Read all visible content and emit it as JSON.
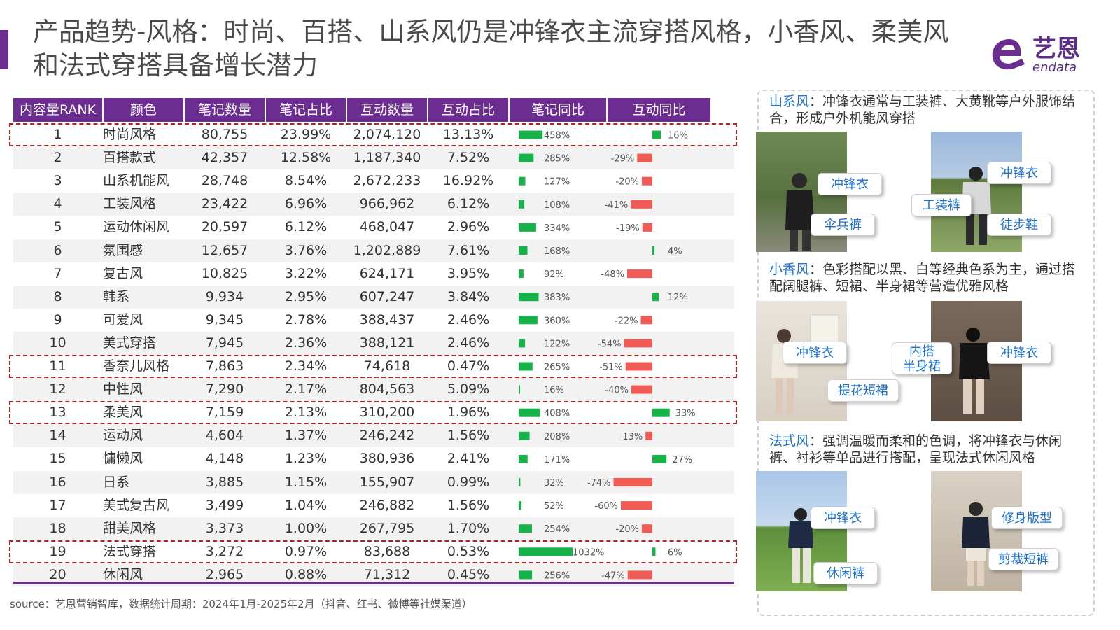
{
  "title": "产品趋势-风格：时尚、百搭、山系风仍是冲锋衣主流穿搭风格，小香风、柔美风和法式穿搭具备增长潜力",
  "logo": {
    "cn": "艺恩",
    "en": "endata"
  },
  "colors": {
    "accent": "#6b2d8f",
    "bar_positive": "#18b24a",
    "bar_negative": "#f05b55",
    "highlight": "#b22222",
    "keyword": "#1e6fcf"
  },
  "table": {
    "headers": [
      "内容量RANK",
      "颜色",
      "笔记数量",
      "笔记占比",
      "互动数量",
      "互动占比",
      "笔记同比",
      "互动同比"
    ],
    "rows": [
      {
        "rank": "1",
        "name": "时尚风格",
        "notes": "80,755",
        "notes_pct": "23.99%",
        "inter": "2,074,120",
        "inter_pct": "13.13%",
        "note_yoy": "458%",
        "inter_yoy": "16%"
      },
      {
        "rank": "2",
        "name": "百搭款式",
        "notes": "42,357",
        "notes_pct": "12.58%",
        "inter": "1,187,340",
        "inter_pct": "7.52%",
        "note_yoy": "285%",
        "inter_yoy": "-29%"
      },
      {
        "rank": "3",
        "name": "山系机能风",
        "notes": "28,748",
        "notes_pct": "8.54%",
        "inter": "2,672,233",
        "inter_pct": "16.92%",
        "note_yoy": "127%",
        "inter_yoy": "-20%"
      },
      {
        "rank": "4",
        "name": "工装风格",
        "notes": "23,422",
        "notes_pct": "6.96%",
        "inter": "966,962",
        "inter_pct": "6.12%",
        "note_yoy": "108%",
        "inter_yoy": "-41%"
      },
      {
        "rank": "5",
        "name": "运动休闲风",
        "notes": "20,597",
        "notes_pct": "6.12%",
        "inter": "468,047",
        "inter_pct": "2.96%",
        "note_yoy": "334%",
        "inter_yoy": "-19%"
      },
      {
        "rank": "6",
        "name": "氛围感",
        "notes": "12,657",
        "notes_pct": "3.76%",
        "inter": "1,202,889",
        "inter_pct": "7.61%",
        "note_yoy": "168%",
        "inter_yoy": "4%"
      },
      {
        "rank": "7",
        "name": "复古风",
        "notes": "10,825",
        "notes_pct": "3.22%",
        "inter": "624,171",
        "inter_pct": "3.95%",
        "note_yoy": "92%",
        "inter_yoy": "-48%"
      },
      {
        "rank": "8",
        "name": "韩系",
        "notes": "9,934",
        "notes_pct": "2.95%",
        "inter": "607,247",
        "inter_pct": "3.84%",
        "note_yoy": "383%",
        "inter_yoy": "12%"
      },
      {
        "rank": "9",
        "name": "可爱风",
        "notes": "9,345",
        "notes_pct": "2.78%",
        "inter": "388,437",
        "inter_pct": "2.46%",
        "note_yoy": "360%",
        "inter_yoy": "-22%"
      },
      {
        "rank": "10",
        "name": "美式穿搭",
        "notes": "7,945",
        "notes_pct": "2.36%",
        "inter": "388,121",
        "inter_pct": "2.46%",
        "note_yoy": "122%",
        "inter_yoy": "-54%"
      },
      {
        "rank": "11",
        "name": "香奈儿风格",
        "notes": "7,863",
        "notes_pct": "2.34%",
        "inter": "74,618",
        "inter_pct": "0.47%",
        "note_yoy": "265%",
        "inter_yoy": "-51%"
      },
      {
        "rank": "12",
        "name": "中性风",
        "notes": "7,290",
        "notes_pct": "2.17%",
        "inter": "804,563",
        "inter_pct": "5.09%",
        "note_yoy": "16%",
        "inter_yoy": "-40%"
      },
      {
        "rank": "13",
        "name": "柔美风",
        "notes": "7,159",
        "notes_pct": "2.13%",
        "inter": "310,200",
        "inter_pct": "1.96%",
        "note_yoy": "408%",
        "inter_yoy": "33%"
      },
      {
        "rank": "14",
        "name": "运动风",
        "notes": "4,604",
        "notes_pct": "1.37%",
        "inter": "246,242",
        "inter_pct": "1.56%",
        "note_yoy": "208%",
        "inter_yoy": "-13%"
      },
      {
        "rank": "15",
        "name": "慵懒风",
        "notes": "4,148",
        "notes_pct": "1.23%",
        "inter": "380,936",
        "inter_pct": "2.41%",
        "note_yoy": "171%",
        "inter_yoy": "27%"
      },
      {
        "rank": "16",
        "name": "日系",
        "notes": "3,885",
        "notes_pct": "1.15%",
        "inter": "155,907",
        "inter_pct": "0.99%",
        "note_yoy": "32%",
        "inter_yoy": "-74%"
      },
      {
        "rank": "17",
        "name": "美式复古风",
        "notes": "3,499",
        "notes_pct": "1.04%",
        "inter": "246,882",
        "inter_pct": "1.56%",
        "note_yoy": "52%",
        "inter_yoy": "-60%"
      },
      {
        "rank": "18",
        "name": "甜美风格",
        "notes": "3,373",
        "notes_pct": "1.00%",
        "inter": "267,795",
        "inter_pct": "1.70%",
        "note_yoy": "254%",
        "inter_yoy": "-20%"
      },
      {
        "rank": "19",
        "name": "法式穿搭",
        "notes": "3,272",
        "notes_pct": "0.97%",
        "inter": "83,688",
        "inter_pct": "0.53%",
        "note_yoy": "1032%",
        "inter_yoy": "6%"
      },
      {
        "rank": "20",
        "name": "休闲风",
        "notes": "2,965",
        "notes_pct": "0.88%",
        "inter": "71,312",
        "inter_pct": "0.45%",
        "note_yoy": "256%",
        "inter_yoy": "-47%"
      }
    ],
    "highlighted_ranks": [
      "1",
      "11",
      "13",
      "19"
    ]
  },
  "chart_data": {
    "type": "bar",
    "categories": [
      "时尚风格",
      "百搭款式",
      "山系机能风",
      "工装风格",
      "运动休闲风",
      "氛围感",
      "复古风",
      "韩系",
      "可爱风",
      "美式穿搭",
      "香奈儿风格",
      "中性风",
      "柔美风",
      "运动风",
      "慵懒风",
      "日系",
      "美式复古风",
      "甜美风格",
      "法式穿搭",
      "休闲风"
    ],
    "series": [
      {
        "name": "笔记同比",
        "values": [
          458,
          285,
          127,
          108,
          334,
          168,
          92,
          383,
          360,
          122,
          265,
          16,
          408,
          208,
          171,
          32,
          52,
          254,
          1032,
          256
        ]
      },
      {
        "name": "互动同比",
        "values": [
          16,
          -29,
          -20,
          -41,
          -19,
          4,
          -48,
          12,
          -22,
          -54,
          -51,
          -40,
          33,
          -13,
          27,
          -74,
          -60,
          -20,
          6,
          -47
        ]
      }
    ]
  },
  "source": "source：艺恩营销智库，数据统计周期：2024年1月-2025年2月（抖音、红书、微博等社媒渠道）",
  "panel": {
    "sections": [
      {
        "key": "山系风",
        "text": "：冲锋衣通常与工装裤、大黄靴等户外服饰结合，形成户外机能风穿搭",
        "callouts": [
          "冲锋衣",
          "伞兵裤",
          "冲锋衣",
          "工装裤",
          "徒步鞋"
        ]
      },
      {
        "key": "小香风",
        "text": "：色彩搭配以黑、白等经典色系为主，通过搭配阔腿裤、短裙、半身裙等营造优雅风格",
        "callouts": [
          "冲锋衣",
          "提花短裙",
          "内搭\n半身裙",
          "冲锋衣"
        ]
      },
      {
        "key": "法式风",
        "text": "：强调温暖而柔和的色调，将冲锋衣与休闲裤、衬衫等单品进行搭配，呈现法式休闲风格",
        "callouts": [
          "冲锋衣",
          "休闲裤",
          "修身版型",
          "剪裁短裤"
        ]
      }
    ]
  }
}
